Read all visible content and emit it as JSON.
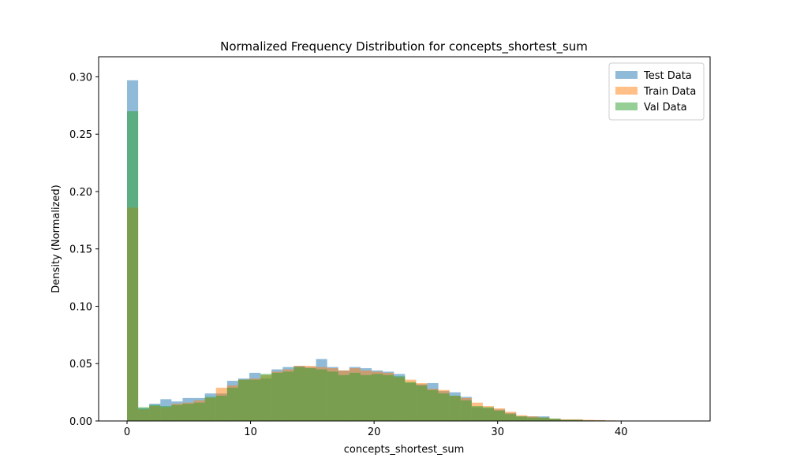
{
  "chart_data": {
    "type": "bar",
    "title": "Normalized Frequency Distribution for concepts_shortest_sum",
    "xlabel": "concepts_shortest_sum",
    "ylabel": "Density (Normalized)",
    "xlim": [
      -2.3,
      47.2
    ],
    "ylim": [
      0,
      0.3175
    ],
    "xticks": [
      0,
      10,
      20,
      30,
      40
    ],
    "yticks": [
      0.0,
      0.05,
      0.1,
      0.15,
      0.2,
      0.25,
      0.3
    ],
    "ytick_labels": [
      "0.00",
      "0.05",
      "0.10",
      "0.15",
      "0.20",
      "0.25",
      "0.30"
    ],
    "grid": false,
    "legend_position": "top-right",
    "series": [
      {
        "name": "Test Data",
        "color": "#1f77b4",
        "bins": [
          [
            0.0,
            0.9,
            0.297
          ],
          [
            0.9,
            1.8,
            0.011
          ],
          [
            1.8,
            2.7,
            0.015
          ],
          [
            2.7,
            3.6,
            0.019
          ],
          [
            3.6,
            4.5,
            0.017
          ],
          [
            4.5,
            5.4,
            0.02
          ],
          [
            5.4,
            6.3,
            0.02
          ],
          [
            6.3,
            7.2,
            0.024
          ],
          [
            7.2,
            8.1,
            0.024
          ],
          [
            8.1,
            9.0,
            0.035
          ],
          [
            9.0,
            9.9,
            0.037
          ],
          [
            9.9,
            10.8,
            0.042
          ],
          [
            10.8,
            11.7,
            0.037
          ],
          [
            11.7,
            12.6,
            0.045
          ],
          [
            12.6,
            13.5,
            0.047
          ],
          [
            13.5,
            14.4,
            0.048
          ],
          [
            14.4,
            15.3,
            0.047
          ],
          [
            15.3,
            16.2,
            0.054
          ],
          [
            16.2,
            17.1,
            0.047
          ],
          [
            17.1,
            18.0,
            0.044
          ],
          [
            18.0,
            18.9,
            0.047
          ],
          [
            18.9,
            19.8,
            0.046
          ],
          [
            19.8,
            20.7,
            0.044
          ],
          [
            20.7,
            21.6,
            0.043
          ],
          [
            21.6,
            22.5,
            0.041
          ],
          [
            22.5,
            23.4,
            0.033
          ],
          [
            23.4,
            24.3,
            0.032
          ],
          [
            24.3,
            25.2,
            0.033
          ],
          [
            25.2,
            26.1,
            0.026
          ],
          [
            26.1,
            27.0,
            0.025
          ],
          [
            27.0,
            27.9,
            0.021
          ],
          [
            27.9,
            28.8,
            0.012
          ],
          [
            28.8,
            29.7,
            0.011
          ],
          [
            29.7,
            30.6,
            0.01
          ],
          [
            30.6,
            31.5,
            0.007
          ],
          [
            31.5,
            32.4,
            0.004
          ],
          [
            32.4,
            33.3,
            0.004
          ],
          [
            33.3,
            34.2,
            0.004
          ],
          [
            34.2,
            35.1,
            0.002
          ],
          [
            35.1,
            36.0,
            0.001
          ],
          [
            36.0,
            36.9,
            0.001
          ],
          [
            36.9,
            37.8,
            0.0005
          ],
          [
            37.8,
            38.7,
            0.0005
          ],
          [
            38.7,
            39.6,
            0.0003
          ]
        ]
      },
      {
        "name": "Train Data",
        "color": "#ff7f0e",
        "bins": [
          [
            0.0,
            0.9,
            0.186
          ],
          [
            0.9,
            1.8,
            0.01
          ],
          [
            1.8,
            2.7,
            0.013
          ],
          [
            2.7,
            3.6,
            0.012
          ],
          [
            3.6,
            4.5,
            0.015
          ],
          [
            4.5,
            5.4,
            0.016
          ],
          [
            5.4,
            6.3,
            0.018
          ],
          [
            6.3,
            7.2,
            0.02
          ],
          [
            7.2,
            8.1,
            0.029
          ],
          [
            8.1,
            9.0,
            0.031
          ],
          [
            9.0,
            9.9,
            0.036
          ],
          [
            9.9,
            10.8,
            0.037
          ],
          [
            10.8,
            11.7,
            0.04
          ],
          [
            11.7,
            12.6,
            0.043
          ],
          [
            12.6,
            13.5,
            0.045
          ],
          [
            13.5,
            14.4,
            0.048
          ],
          [
            14.4,
            15.3,
            0.048
          ],
          [
            15.3,
            16.2,
            0.047
          ],
          [
            16.2,
            17.1,
            0.046
          ],
          [
            17.1,
            18.0,
            0.044
          ],
          [
            18.0,
            18.9,
            0.046
          ],
          [
            18.9,
            19.8,
            0.044
          ],
          [
            19.8,
            20.7,
            0.043
          ],
          [
            20.7,
            21.6,
            0.042
          ],
          [
            21.6,
            22.5,
            0.038
          ],
          [
            22.5,
            23.4,
            0.036
          ],
          [
            23.4,
            24.3,
            0.033
          ],
          [
            24.3,
            25.2,
            0.028
          ],
          [
            25.2,
            26.1,
            0.027
          ],
          [
            26.1,
            27.0,
            0.022
          ],
          [
            27.0,
            27.9,
            0.02
          ],
          [
            27.9,
            28.8,
            0.016
          ],
          [
            28.8,
            29.7,
            0.013
          ],
          [
            29.7,
            30.6,
            0.011
          ],
          [
            30.6,
            31.5,
            0.008
          ],
          [
            31.5,
            32.4,
            0.005
          ],
          [
            32.4,
            33.3,
            0.004
          ],
          [
            33.3,
            34.2,
            0.003
          ],
          [
            34.2,
            35.1,
            0.002
          ],
          [
            35.1,
            36.0,
            0.0015
          ],
          [
            36.0,
            36.9,
            0.0015
          ],
          [
            36.9,
            37.8,
            0.001
          ],
          [
            37.8,
            38.7,
            0.0008
          ],
          [
            38.7,
            39.6,
            0.0005
          ]
        ]
      },
      {
        "name": "Val Data",
        "color": "#2ca02c",
        "bins": [
          [
            0.0,
            0.9,
            0.27
          ],
          [
            0.9,
            1.8,
            0.012
          ],
          [
            1.8,
            2.7,
            0.014
          ],
          [
            2.7,
            3.6,
            0.013
          ],
          [
            3.6,
            4.5,
            0.014
          ],
          [
            4.5,
            5.4,
            0.015
          ],
          [
            5.4,
            6.3,
            0.016
          ],
          [
            6.3,
            7.2,
            0.021
          ],
          [
            7.2,
            8.1,
            0.022
          ],
          [
            8.1,
            9.0,
            0.029
          ],
          [
            9.0,
            9.9,
            0.036
          ],
          [
            9.9,
            10.8,
            0.036
          ],
          [
            10.8,
            11.7,
            0.041
          ],
          [
            11.7,
            12.6,
            0.042
          ],
          [
            12.6,
            13.5,
            0.043
          ],
          [
            13.5,
            14.4,
            0.047
          ],
          [
            14.4,
            15.3,
            0.046
          ],
          [
            15.3,
            16.2,
            0.045
          ],
          [
            16.2,
            17.1,
            0.043
          ],
          [
            17.1,
            18.0,
            0.04
          ],
          [
            18.0,
            18.9,
            0.042
          ],
          [
            18.9,
            19.8,
            0.04
          ],
          [
            19.8,
            20.7,
            0.041
          ],
          [
            20.7,
            21.6,
            0.04
          ],
          [
            21.6,
            22.5,
            0.039
          ],
          [
            22.5,
            23.4,
            0.034
          ],
          [
            23.4,
            24.3,
            0.031
          ],
          [
            24.3,
            25.2,
            0.027
          ],
          [
            25.2,
            26.1,
            0.024
          ],
          [
            26.1,
            27.0,
            0.022
          ],
          [
            27.0,
            27.9,
            0.018
          ],
          [
            27.9,
            28.8,
            0.013
          ],
          [
            28.8,
            29.7,
            0.012
          ],
          [
            29.7,
            30.6,
            0.009
          ],
          [
            30.6,
            31.5,
            0.006
          ],
          [
            31.5,
            32.4,
            0.004
          ],
          [
            32.4,
            33.3,
            0.003
          ],
          [
            33.3,
            34.2,
            0.003
          ],
          [
            34.2,
            35.1,
            0.002
          ],
          [
            35.1,
            36.0,
            0.001
          ],
          [
            36.0,
            36.9,
            0.001
          ],
          [
            36.9,
            37.8,
            0.0005
          ],
          [
            37.8,
            38.7,
            0.0004
          ],
          [
            38.7,
            39.6,
            0.0003
          ]
        ]
      }
    ]
  }
}
